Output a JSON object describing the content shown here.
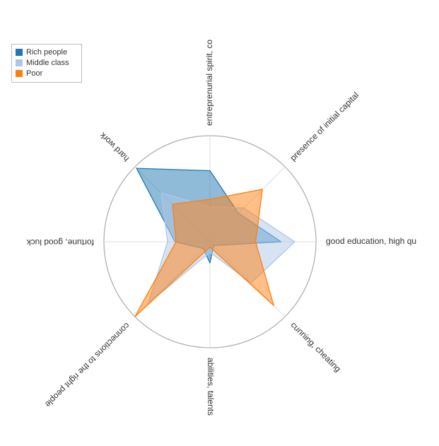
{
  "chart_data": {
    "type": "radar",
    "axes": [
      "entreprenurial spirit, co",
      "presence of initial capital",
      "good education, high qu",
      "cunning, cheating",
      "abilities, talents",
      "connections to the right people",
      "fortune, good luck",
      "hard work"
    ],
    "series": [
      {
        "name": "Rich people",
        "color": "#1f77b4",
        "values": [
          0.67,
          0.38,
          0.67,
          0.05,
          0.2,
          0.09,
          0.33,
          0.98
        ]
      },
      {
        "name": "Middle class",
        "color": "#aec7e8",
        "values": [
          0.33,
          0.45,
          0.8,
          0.55,
          0.1,
          0.82,
          0.4,
          0.65
        ]
      },
      {
        "name": "Poor",
        "color": "#ff7f0e",
        "values": [
          0.4,
          0.7,
          0.43,
          0.85,
          0.05,
          1.0,
          0.32,
          0.5
        ]
      }
    ],
    "range": [
      0,
      1
    ],
    "grid": "circular",
    "legend_position": "top-left"
  }
}
